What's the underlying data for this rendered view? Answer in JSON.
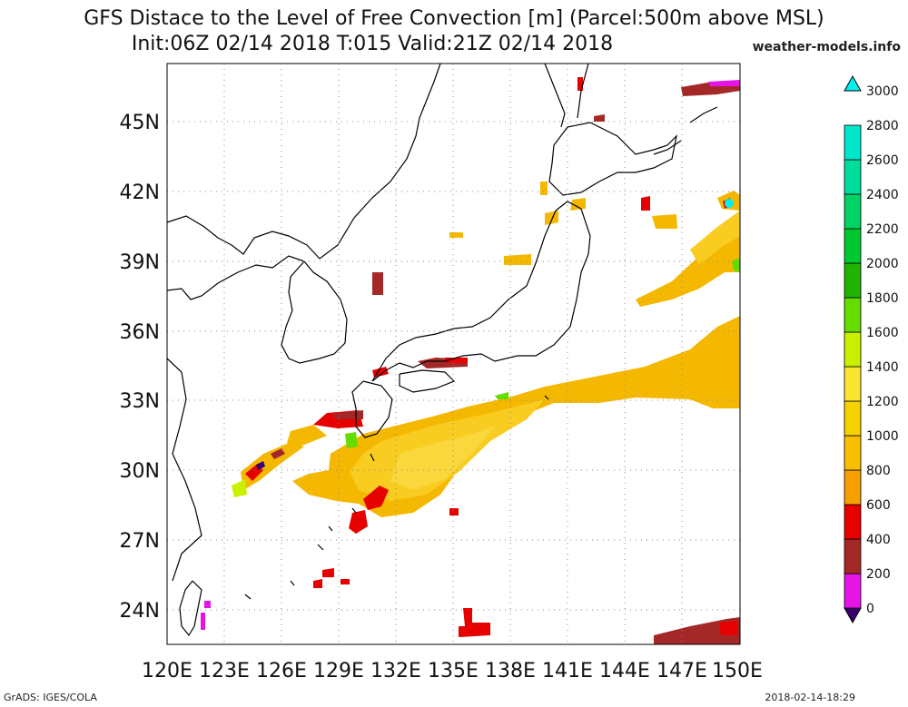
{
  "header": {
    "title_line1": "GFS Distace to the Level of Free Convection [m] (Parcel:500m above MSL)",
    "title_line2": "Init:06Z 02/14 2018 T:015 Valid:21Z 02/14 2018",
    "source": "weather-models.info"
  },
  "map": {
    "lon_labels": [
      "120E",
      "123E",
      "126E",
      "129E",
      "132E",
      "135E",
      "138E",
      "141E",
      "144E",
      "147E",
      "150E"
    ],
    "lat_labels": [
      "24N",
      "27N",
      "30N",
      "33N",
      "36N",
      "39N",
      "42N",
      "45N"
    ]
  },
  "colorbar": {
    "levels": [
      "0",
      "200",
      "400",
      "600",
      "800",
      "1000",
      "1200",
      "1400",
      "1600",
      "1800",
      "2000",
      "2200",
      "2400",
      "2600",
      "2800",
      "3000"
    ],
    "colors": [
      "#3a006e",
      "#e614e6",
      "#a52828",
      "#e60000",
      "#f5a000",
      "#fabe00",
      "#f5d200",
      "#fae632",
      "#c8f000",
      "#64dc00",
      "#1eb400",
      "#00c830",
      "#00d264",
      "#00dc9b",
      "#00e6c8",
      "#00f0f0"
    ]
  },
  "footer": {
    "left": "GrADS: IGES/COLA",
    "right": "2018-02-14-18:29"
  }
}
